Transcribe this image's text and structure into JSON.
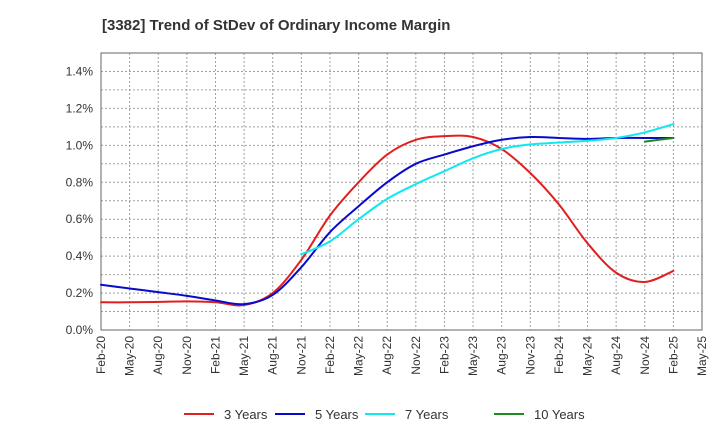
{
  "chart_data": {
    "type": "line",
    "title": "[3382]  Trend of StDev of Ordinary Income Margin",
    "xlabel": "",
    "ylabel": "",
    "x_ticks": [
      "Feb-20",
      "May-20",
      "Aug-20",
      "Nov-20",
      "Feb-21",
      "May-21",
      "Aug-21",
      "Nov-21",
      "Feb-22",
      "May-22",
      "Aug-22",
      "Nov-22",
      "Feb-23",
      "May-23",
      "Aug-23",
      "Nov-23",
      "Feb-24",
      "May-24",
      "Aug-24",
      "Nov-24",
      "Feb-25",
      "May-25"
    ],
    "y_ticks": [
      "0.0%",
      "0.2%",
      "0.4%",
      "0.6%",
      "0.8%",
      "1.0%",
      "1.2%",
      "1.4%"
    ],
    "ylim": [
      0,
      1.5
    ],
    "y_unit": "%",
    "grid": true,
    "legend_position": "bottom",
    "series": [
      {
        "name": "3 Years",
        "color": "#e02020",
        "points": [
          [
            "Feb-20",
            0.15
          ],
          [
            "May-20",
            0.15
          ],
          [
            "Aug-20",
            0.152
          ],
          [
            "Nov-20",
            0.155
          ],
          [
            "Feb-21",
            0.15
          ],
          [
            "May-21",
            0.135
          ],
          [
            "Aug-21",
            0.2
          ],
          [
            "Nov-21",
            0.38
          ],
          [
            "Feb-22",
            0.62
          ],
          [
            "May-22",
            0.8
          ],
          [
            "Aug-22",
            0.95
          ],
          [
            "Nov-22",
            1.03
          ],
          [
            "Feb-23",
            1.05
          ],
          [
            "May-23",
            1.045
          ],
          [
            "Aug-23",
            0.98
          ],
          [
            "Nov-23",
            0.85
          ],
          [
            "Feb-24",
            0.68
          ],
          [
            "May-24",
            0.47
          ],
          [
            "Aug-24",
            0.31
          ],
          [
            "Nov-24",
            0.26
          ],
          [
            "Feb-25",
            0.32
          ]
        ]
      },
      {
        "name": "5 Years",
        "color": "#0a0acc",
        "points": [
          [
            "Feb-20",
            0.245
          ],
          [
            "May-20",
            0.225
          ],
          [
            "Aug-20",
            0.205
          ],
          [
            "Nov-20",
            0.185
          ],
          [
            "Feb-21",
            0.16
          ],
          [
            "May-21",
            0.14
          ],
          [
            "Aug-21",
            0.19
          ],
          [
            "Nov-21",
            0.34
          ],
          [
            "Feb-22",
            0.53
          ],
          [
            "May-22",
            0.67
          ],
          [
            "Aug-22",
            0.8
          ],
          [
            "Nov-22",
            0.9
          ],
          [
            "Feb-23",
            0.95
          ],
          [
            "May-23",
            0.995
          ],
          [
            "Aug-23",
            1.03
          ],
          [
            "Nov-23",
            1.045
          ],
          [
            "Feb-24",
            1.04
          ],
          [
            "May-24",
            1.035
          ],
          [
            "Aug-24",
            1.04
          ],
          [
            "Nov-24",
            1.04
          ],
          [
            "Feb-25",
            1.04
          ]
        ]
      },
      {
        "name": "7 Years",
        "color": "#10e8f0",
        "points": [
          [
            "Nov-21",
            0.41
          ],
          [
            "Feb-22",
            0.48
          ],
          [
            "May-22",
            0.6
          ],
          [
            "Aug-22",
            0.71
          ],
          [
            "Nov-22",
            0.79
          ],
          [
            "Feb-23",
            0.86
          ],
          [
            "May-23",
            0.93
          ],
          [
            "Aug-23",
            0.98
          ],
          [
            "Nov-23",
            1.005
          ],
          [
            "Feb-24",
            1.015
          ],
          [
            "May-24",
            1.025
          ],
          [
            "Aug-24",
            1.04
          ],
          [
            "Nov-24",
            1.07
          ],
          [
            "Feb-25",
            1.115
          ]
        ]
      },
      {
        "name": "10 Years",
        "color": "#208a20",
        "points": [
          [
            "Nov-24",
            1.02
          ],
          [
            "Feb-25",
            1.04
          ]
        ]
      }
    ]
  }
}
